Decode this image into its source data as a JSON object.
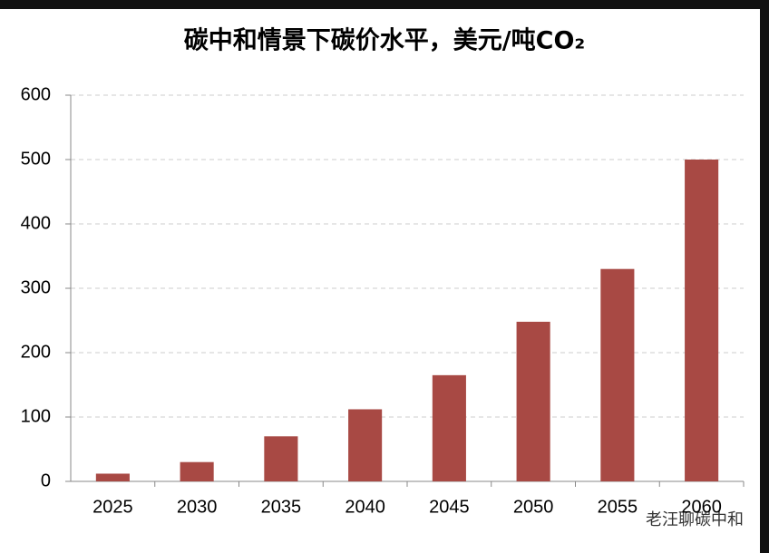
{
  "chart_data": {
    "type": "bar",
    "title": "碳中和情景下碳价水平，美元/吨CO₂",
    "categories": [
      "2025",
      "2030",
      "2035",
      "2040",
      "2045",
      "2050",
      "2055",
      "2060"
    ],
    "values": [
      12,
      30,
      70,
      112,
      165,
      248,
      330,
      500
    ],
    "color": "#a84944",
    "ylim": [
      0,
      600
    ],
    "yticks": [
      0,
      100,
      200,
      300,
      400,
      500,
      600
    ],
    "grid": true,
    "watermark": "老汪聊碳中和"
  }
}
